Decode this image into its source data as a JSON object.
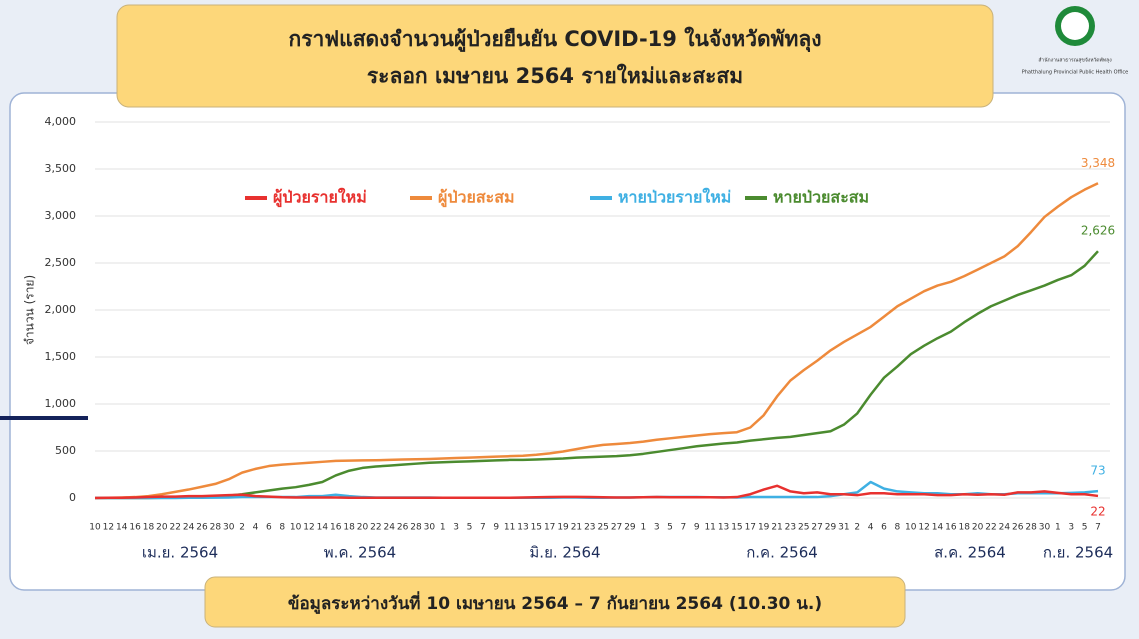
{
  "header": {
    "title_line1": "กราฟแสดงจำนวนผู้ป่วยยืนยัน COVID-19 ในจังหวัดพัทลุง",
    "title_line2": "ระลอก เมษายน 2564 รายใหม่และสะสม",
    "org_th": "สำนักงานสาธารณสุขจังหวัดพัทลุง",
    "org_en": "Phatthalung Provincial Public Health Office"
  },
  "footer": {
    "note": "ข้อมูลระหว่างวันที่ 10 เมษายน 2564 – 7 กันยายน 2564 (10.30 น.)"
  },
  "chart_data": {
    "type": "line",
    "ylabel": "จำนวน (ราย)",
    "categories": [
      "10",
      "12",
      "14",
      "16",
      "18",
      "20",
      "22",
      "24",
      "26",
      "28",
      "30",
      "2",
      "4",
      "6",
      "8",
      "10",
      "12",
      "14",
      "16",
      "18",
      "20",
      "22",
      "24",
      "26",
      "28",
      "30",
      "1",
      "3",
      "5",
      "7",
      "9",
      "11",
      "13",
      "15",
      "17",
      "19",
      "21",
      "23",
      "25",
      "27",
      "29",
      "1",
      "3",
      "5",
      "7",
      "9",
      "11",
      "13",
      "15",
      "17",
      "19",
      "21",
      "23",
      "25",
      "27",
      "29",
      "31",
      "2",
      "4",
      "6",
      "8",
      "10",
      "12",
      "14",
      "16",
      "18",
      "20",
      "22",
      "24",
      "26",
      "28",
      "30",
      "1",
      "3",
      "5",
      "7"
    ],
    "months": [
      "เม.ย. 2564",
      "พ.ค. 2564",
      "มิ.ย. 2564",
      "ก.ค. 2564",
      "ส.ค. 2564",
      "ก.ย. 2564"
    ],
    "ylim": [
      0,
      4000
    ],
    "yticks": [
      0,
      500,
      {
        "value": 1000,
        "label": "1,000"
      },
      {
        "value": 1500,
        "label": "1,500"
      },
      {
        "value": 2000,
        "label": "2,000"
      },
      {
        "value": 2500,
        "label": "2,500"
      },
      {
        "value": 3000,
        "label": "3,000"
      },
      {
        "value": 3500,
        "label": "3,500"
      },
      {
        "value": 4000,
        "label": "4,000"
      }
    ],
    "grid": true,
    "series": [
      {
        "name": "ผู้ป่วยรายใหม่",
        "color": "#e8312f",
        "values": [
          0,
          2,
          3,
          5,
          10,
          15,
          15,
          20,
          20,
          25,
          30,
          35,
          20,
          15,
          8,
          5,
          5,
          5,
          5,
          3,
          2,
          2,
          2,
          3,
          2,
          2,
          3,
          3,
          3,
          3,
          3,
          3,
          5,
          8,
          10,
          12,
          12,
          10,
          8,
          5,
          5,
          8,
          10,
          8,
          8,
          8,
          8,
          5,
          10,
          40,
          90,
          130,
          70,
          50,
          60,
          40,
          40,
          30,
          50,
          50,
          40,
          40,
          40,
          30,
          30,
          40,
          35,
          40,
          35,
          60,
          60,
          70,
          55,
          40,
          40,
          22
        ]
      },
      {
        "name": "ผู้ป่วยสะสม",
        "color": "#ee8a3c",
        "values": [
          0,
          2,
          5,
          10,
          20,
          40,
          65,
          90,
          120,
          150,
          200,
          270,
          310,
          340,
          355,
          365,
          375,
          385,
          395,
          398,
          400,
          402,
          405,
          410,
          412,
          415,
          420,
          425,
          430,
          435,
          440,
          445,
          450,
          460,
          475,
          495,
          520,
          545,
          565,
          575,
          585,
          600,
          620,
          635,
          650,
          665,
          680,
          690,
          700,
          750,
          880,
          1080,
          1250,
          1360,
          1460,
          1570,
          1660,
          1740,
          1820,
          1930,
          2040,
          2120,
          2200,
          2260,
          2300,
          2360,
          2430,
          2500,
          2570,
          2680,
          2830,
          2990,
          3100,
          3200,
          3280,
          3348
        ],
        "value_labels": [
          null,
          null,
          null,
          null,
          null,
          null,
          null,
          null,
          null,
          null,
          null,
          null,
          null,
          null,
          null,
          null,
          null,
          null,
          null,
          null,
          null,
          null,
          null,
          null,
          null,
          null,
          null,
          null,
          null,
          null,
          null,
          null,
          null,
          null,
          null,
          null,
          null,
          null,
          null,
          null,
          null,
          null,
          null,
          null,
          null,
          null,
          null,
          null,
          null,
          null,
          null,
          null,
          null,
          null,
          null,
          null,
          null,
          null,
          null,
          null,
          null,
          null,
          null,
          null,
          null,
          null,
          null,
          null,
          null,
          null,
          null,
          null,
          null,
          null,
          null,
          "3,348"
        ]
      },
      {
        "name": "หายป่วยรายใหม่",
        "color": "#3fb0e3",
        "values": [
          0,
          0,
          0,
          0,
          0,
          0,
          0,
          2,
          3,
          4,
          5,
          10,
          10,
          10,
          10,
          10,
          20,
          20,
          35,
          20,
          10,
          5,
          5,
          5,
          5,
          5,
          3,
          3,
          3,
          3,
          3,
          3,
          3,
          3,
          3,
          5,
          5,
          3,
          3,
          5,
          5,
          8,
          10,
          10,
          10,
          10,
          8,
          8,
          5,
          10,
          10,
          10,
          10,
          10,
          10,
          20,
          40,
          60,
          170,
          100,
          70,
          60,
          50,
          50,
          40,
          40,
          50,
          40,
          40,
          50,
          50,
          50,
          50,
          55,
          60,
          73
        ]
      },
      {
        "name": "หายป่วยสะสม",
        "color": "#4b8b2f",
        "values": [
          0,
          0,
          0,
          0,
          0,
          2,
          5,
          8,
          10,
          15,
          25,
          40,
          60,
          80,
          100,
          115,
          140,
          170,
          240,
          290,
          320,
          335,
          345,
          355,
          365,
          375,
          380,
          385,
          390,
          395,
          400,
          405,
          405,
          410,
          415,
          420,
          430,
          435,
          440,
          445,
          455,
          470,
          490,
          510,
          530,
          550,
          565,
          580,
          590,
          610,
          625,
          640,
          650,
          670,
          690,
          710,
          780,
          900,
          1100,
          1280,
          1400,
          1530,
          1620,
          1700,
          1770,
          1870,
          1960,
          2040,
          2100,
          2160,
          2210,
          2260,
          2320,
          2370,
          2470,
          2626
        ],
        "value_labels": [
          null,
          null,
          null,
          null,
          null,
          null,
          null,
          null,
          null,
          null,
          null,
          null,
          null,
          null,
          null,
          null,
          null,
          null,
          null,
          null,
          null,
          null,
          null,
          null,
          null,
          null,
          null,
          null,
          null,
          null,
          null,
          null,
          null,
          null,
          null,
          null,
          null,
          null,
          null,
          null,
          null,
          null,
          null,
          null,
          null,
          null,
          null,
          null,
          null,
          null,
          null,
          null,
          null,
          null,
          null,
          null,
          null,
          null,
          null,
          null,
          null,
          null,
          null,
          null,
          null,
          null,
          null,
          null,
          null,
          null,
          null,
          null,
          null,
          null,
          null,
          "2,626"
        ]
      }
    ]
  }
}
